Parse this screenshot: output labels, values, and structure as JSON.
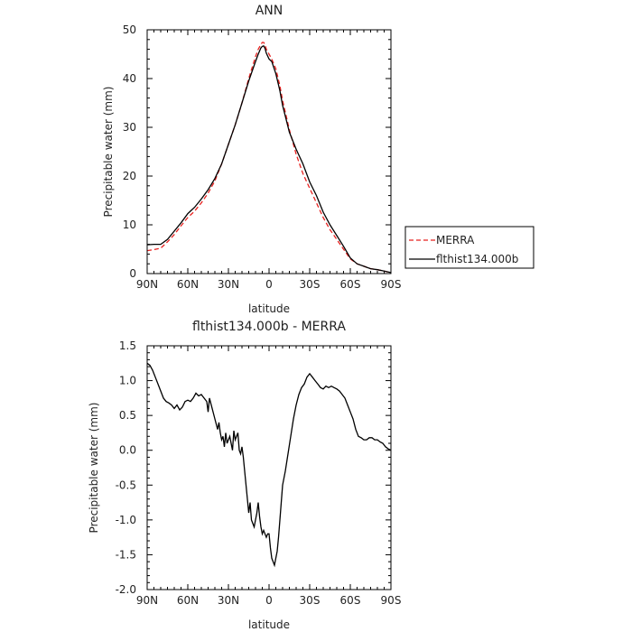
{
  "chart_data": [
    {
      "type": "line",
      "title": "ANN",
      "xlabel": "latitude",
      "ylabel": "Precipitable water (mm)",
      "xlim": [
        90,
        -90
      ],
      "ylim": [
        0,
        50
      ],
      "xticks": [
        90,
        60,
        30,
        0,
        -30,
        -60,
        -90
      ],
      "xtick_labels": [
        "90N",
        "60N",
        "30N",
        "0",
        "30S",
        "60S",
        "90S"
      ],
      "yticks": [
        0,
        10,
        20,
        30,
        40,
        50
      ],
      "ytick_labels": [
        "0",
        "10",
        "20",
        "30",
        "40",
        "50"
      ],
      "legend": {
        "position": "right"
      },
      "series": [
        {
          "name": "MERRA",
          "color": "#e8211f",
          "dash": "dashed",
          "x": [
            90,
            85,
            80,
            75,
            70,
            65,
            60,
            55,
            50,
            45,
            40,
            35,
            30,
            25,
            20,
            15,
            10,
            8,
            6,
            5,
            4,
            3,
            2,
            0,
            -2,
            -5,
            -8,
            -10,
            -15,
            -20,
            -25,
            -30,
            -35,
            -40,
            -45,
            -50,
            -55,
            -60,
            -65,
            -70,
            -72,
            -75,
            -80,
            -85,
            -90
          ],
          "y": [
            4.7,
            4.9,
            5.2,
            6.5,
            8.0,
            9.8,
            11.5,
            12.8,
            14.5,
            16.5,
            19.0,
            22.5,
            26.5,
            30.5,
            35.0,
            40.0,
            44.5,
            46.0,
            47.0,
            47.4,
            47.4,
            47.0,
            46.0,
            45.0,
            44.0,
            42.0,
            38.5,
            35.5,
            29.5,
            24.5,
            20.5,
            17.5,
            14.5,
            11.5,
            9.0,
            7.0,
            5.0,
            3.0,
            2.0,
            1.5,
            1.3,
            1.0,
            0.8,
            0.5,
            0.2
          ]
        },
        {
          "name": "flthist134.000b",
          "color": "#000000",
          "dash": "solid",
          "x": [
            90,
            85,
            80,
            75,
            70,
            65,
            60,
            55,
            50,
            45,
            40,
            35,
            30,
            25,
            20,
            15,
            10,
            8,
            6,
            5,
            4,
            3,
            2,
            0,
            -2,
            -5,
            -8,
            -10,
            -15,
            -20,
            -25,
            -30,
            -35,
            -40,
            -45,
            -50,
            -55,
            -60,
            -65,
            -70,
            -72,
            -75,
            -80,
            -85,
            -90
          ],
          "y": [
            5.9,
            6.0,
            6.0,
            7.0,
            8.7,
            10.4,
            12.3,
            13.6,
            15.3,
            17.2,
            19.5,
            22.5,
            26.5,
            30.5,
            35.0,
            39.5,
            43.5,
            45.0,
            46.3,
            46.6,
            46.7,
            46.2,
            45.2,
            44.0,
            43.5,
            41.0,
            37.5,
            34.5,
            29.0,
            25.5,
            22.5,
            18.8,
            16.0,
            12.6,
            10.0,
            7.8,
            5.6,
            3.2,
            2.0,
            1.5,
            1.3,
            1.0,
            0.8,
            0.5,
            0.2
          ]
        }
      ]
    },
    {
      "type": "line",
      "title": "flthist134.000b - MERRA",
      "xlabel": "latitude",
      "ylabel": "Precipitable water (mm)",
      "xlim": [
        90,
        -90
      ],
      "ylim": [
        -2.0,
        1.5
      ],
      "xticks": [
        90,
        60,
        30,
        0,
        -30,
        -60,
        -90
      ],
      "xtick_labels": [
        "90N",
        "60N",
        "30N",
        "0",
        "30S",
        "60S",
        "90S"
      ],
      "yticks": [
        -2.0,
        -1.5,
        -1.0,
        -0.5,
        0.0,
        0.5,
        1.0,
        1.5
      ],
      "ytick_labels": [
        "-2.0",
        "-1.5",
        "-1.0",
        "-0.5",
        "0.0",
        "0.5",
        "1.0",
        "1.5"
      ],
      "series": [
        {
          "color": "#000000",
          "x": [
            90,
            88,
            86,
            84,
            82,
            80,
            78,
            76,
            74,
            72,
            70,
            68,
            66,
            64,
            62,
            60,
            58,
            56,
            54,
            52,
            50,
            48,
            46,
            45,
            44,
            42,
            40,
            38,
            37,
            36,
            35,
            34,
            33,
            32,
            31,
            30,
            29,
            28,
            27,
            26,
            25,
            24,
            23,
            22,
            21,
            20,
            19,
            18,
            17,
            16,
            15,
            14,
            13,
            12,
            11,
            10,
            9,
            8,
            7,
            6,
            5,
            4,
            3,
            2,
            1,
            0,
            -1,
            -2,
            -3,
            -4,
            -5,
            -6,
            -7,
            -8,
            -9,
            -10,
            -12,
            -14,
            -16,
            -18,
            -20,
            -22,
            -24,
            -26,
            -28,
            -30,
            -32,
            -34,
            -36,
            -38,
            -40,
            -42,
            -44,
            -46,
            -48,
            -50,
            -52,
            -54,
            -56,
            -58,
            -60,
            -62,
            -64,
            -66,
            -68,
            -70,
            -72,
            -74,
            -76,
            -78,
            -80,
            -82,
            -84,
            -86,
            -88,
            -90
          ],
          "y": [
            1.25,
            1.22,
            1.15,
            1.05,
            0.95,
            0.85,
            0.75,
            0.7,
            0.68,
            0.65,
            0.6,
            0.65,
            0.58,
            0.62,
            0.7,
            0.72,
            0.7,
            0.75,
            0.82,
            0.78,
            0.8,
            0.75,
            0.7,
            0.55,
            0.75,
            0.6,
            0.45,
            0.3,
            0.4,
            0.25,
            0.15,
            0.2,
            0.05,
            0.25,
            0.1,
            0.15,
            0.2,
            0.1,
            0.0,
            0.28,
            0.15,
            0.2,
            0.25,
            0.0,
            -0.05,
            0.05,
            -0.1,
            -0.3,
            -0.5,
            -0.7,
            -0.9,
            -0.75,
            -1.0,
            -1.05,
            -1.1,
            -1.0,
            -0.9,
            -0.75,
            -0.95,
            -1.1,
            -1.2,
            -1.15,
            -1.2,
            -1.25,
            -1.2,
            -1.2,
            -1.4,
            -1.55,
            -1.6,
            -1.65,
            -1.55,
            -1.45,
            -1.25,
            -1.0,
            -0.75,
            -0.5,
            -0.3,
            -0.05,
            0.2,
            0.45,
            0.65,
            0.8,
            0.9,
            0.95,
            1.05,
            1.1,
            1.05,
            1.0,
            0.95,
            0.9,
            0.88,
            0.92,
            0.9,
            0.92,
            0.9,
            0.88,
            0.85,
            0.8,
            0.75,
            0.65,
            0.55,
            0.45,
            0.3,
            0.2,
            0.18,
            0.15,
            0.15,
            0.18,
            0.18,
            0.15,
            0.15,
            0.12,
            0.1,
            0.05,
            0.02,
            0.0
          ]
        }
      ]
    }
  ]
}
